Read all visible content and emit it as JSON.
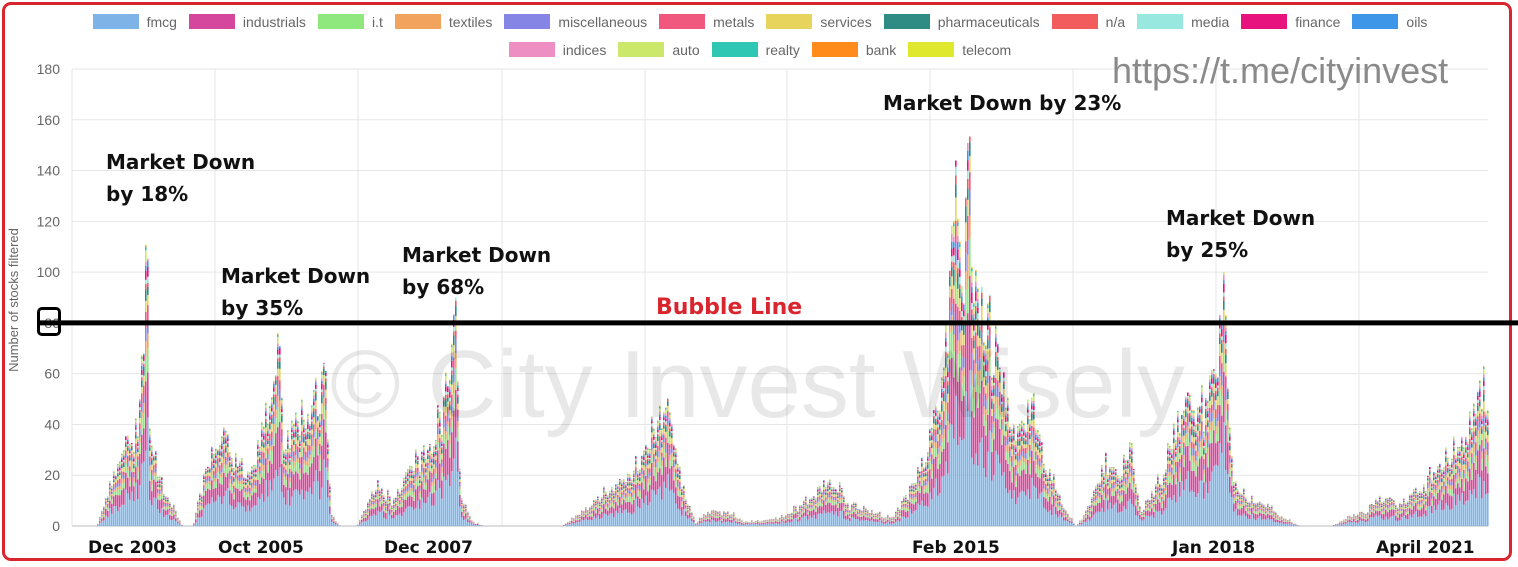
{
  "chart_data": {
    "type": "bar",
    "stacked": true,
    "title": "",
    "xlabel": "",
    "ylabel": "Number of stocks filtered",
    "ylim": [
      0,
      180
    ],
    "yticks": [
      0,
      20,
      40,
      60,
      80,
      100,
      120,
      140,
      160,
      180
    ],
    "grid": true,
    "legend_position": "top",
    "legend": [
      {
        "name": "fmcg",
        "color": "#7eb3e8"
      },
      {
        "name": "industrials",
        "color": "#d4479c"
      },
      {
        "name": "i.t",
        "color": "#8fe87e"
      },
      {
        "name": "textiles",
        "color": "#f2a45e"
      },
      {
        "name": "miscellaneous",
        "color": "#8585e6"
      },
      {
        "name": "metals",
        "color": "#f0587e"
      },
      {
        "name": "services",
        "color": "#e6d45c"
      },
      {
        "name": "pharmaceuticals",
        "color": "#2e8c85"
      },
      {
        "name": "n/a",
        "color": "#f25c5c"
      },
      {
        "name": "media",
        "color": "#99e8e0"
      },
      {
        "name": "finance",
        "color": "#e8127e"
      },
      {
        "name": "oils",
        "color": "#3d96e8"
      },
      {
        "name": "indices",
        "color": "#ed8fc2"
      },
      {
        "name": "auto",
        "color": "#cce86b"
      },
      {
        "name": "realty",
        "color": "#2ec7b3"
      },
      {
        "name": "bank",
        "color": "#ff8c1a"
      },
      {
        "name": "telecom",
        "color": "#e0e82e"
      }
    ],
    "x_labels": [
      "Dec 2003",
      "Oct 2005",
      "Dec 2007",
      "Feb 2015",
      "Jan 2018",
      "April 2021"
    ],
    "peaks": [
      {
        "period": "Dec 2003",
        "value": 127
      },
      {
        "period": "Oct 2005",
        "value": 79
      },
      {
        "period": "Dec 2007",
        "value": 90
      },
      {
        "period": "Feb 2015",
        "value": 161
      },
      {
        "period": "Jan 2018",
        "value": 104
      },
      {
        "period": "April 2021",
        "value": 65
      }
    ],
    "reference_line": {
      "label": "Bubble Line",
      "value": 80
    },
    "annotations": [
      {
        "line1": "Market Down",
        "line2": "by 18%"
      },
      {
        "line1": "Market Down",
        "line2": "by 35%"
      },
      {
        "line1": "Market Down",
        "line2": "by 68%"
      },
      {
        "line1": "Market Down by 23%"
      },
      {
        "line1": "Market Down",
        "line2": "by 25%"
      }
    ]
  },
  "watermark": "© City Invest Wisely",
  "url": "https://t.me/cityinvest",
  "colors": {
    "frame": "#d9252d",
    "bubble_line": "#000000",
    "bubble_label": "#d9252d"
  }
}
